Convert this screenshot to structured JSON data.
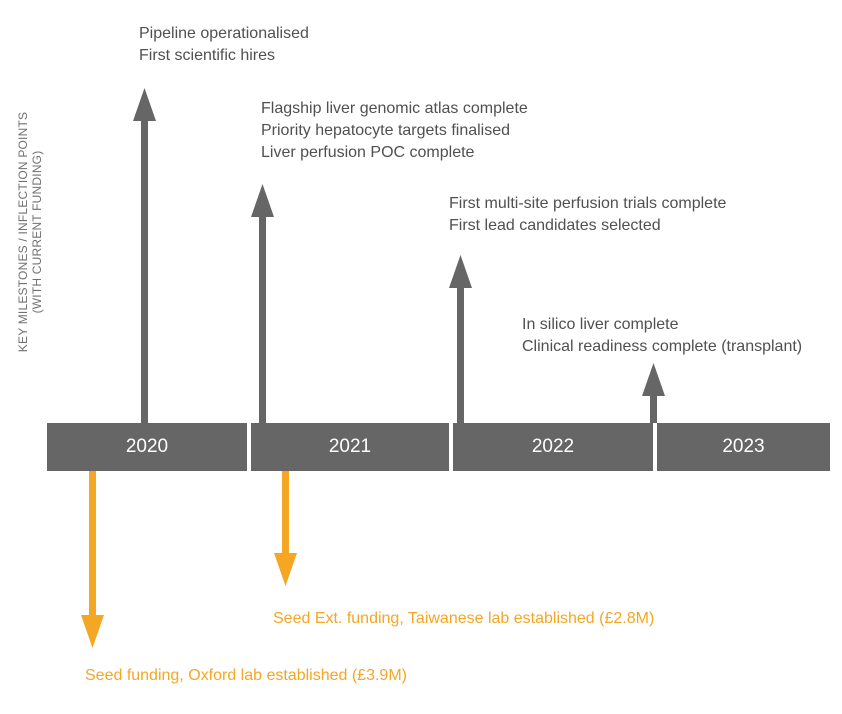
{
  "axis_title": {
    "line1": "KEY MILESTONES / INFLECTION POINTS",
    "line2": "(WITH CURRENT FUNDING)"
  },
  "timeline": {
    "years": [
      "2020",
      "2021",
      "2022",
      "2023"
    ],
    "bar_color": "#666666"
  },
  "milestones": [
    {
      "lines": [
        "Pipeline operationalised",
        "First scientific hires"
      ]
    },
    {
      "lines": [
        "Flagship liver genomic atlas complete",
        "Priority hepatocyte targets finalised",
        "Liver perfusion POC complete"
      ]
    },
    {
      "lines": [
        "First multi-site perfusion trials complete",
        "First lead candidates selected"
      ]
    },
    {
      "lines": [
        "In silico liver complete",
        "Clinical readiness complete (transplant)"
      ]
    }
  ],
  "funding": [
    {
      "label": "Seed funding, Oxford lab established (£3.9M)"
    },
    {
      "label": "Seed Ext. funding, Taiwanese lab established (£2.8M)"
    }
  ],
  "colors": {
    "milestone_arrow": "#666666",
    "funding_arrow": "#f5a623",
    "milestone_text": "#505050",
    "funding_text": "#f5a623"
  }
}
